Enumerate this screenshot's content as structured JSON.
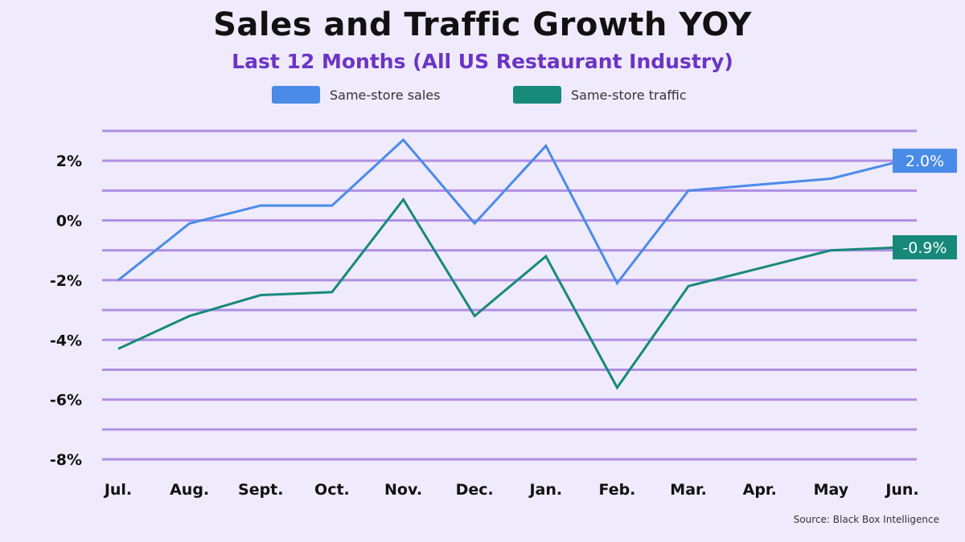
{
  "header": {
    "title": "Sales and Traffic Growth YOY",
    "subtitle": "Last 12 Months (All US Restaurant Industry)"
  },
  "source": "Source: Black Box Intelligence",
  "colors": {
    "sales": "#4a8be8",
    "traffic": "#16897a",
    "subtitle": "#6b34c4",
    "grid": "#b08fe3"
  },
  "chart_data": {
    "type": "line",
    "title": "Sales and Traffic Growth YOY",
    "subtitle": "Last 12 Months (All US Restaurant Industry)",
    "xlabel": "",
    "ylabel": "",
    "categories": [
      "Jul.",
      "Aug.",
      "Sept.",
      "Oct.",
      "Nov.",
      "Dec.",
      "Jan.",
      "Feb.",
      "Mar.",
      "Apr.",
      "May",
      "Jun."
    ],
    "ylim": [
      -8,
      3
    ],
    "yticks": [
      2,
      0,
      -2,
      -4,
      -6,
      -8
    ],
    "ytick_labels": [
      "2%",
      "0%",
      "-2%",
      "-4%",
      "-6%",
      "-8%"
    ],
    "gridlines": [
      3,
      2,
      1,
      0,
      -1,
      -2,
      -3,
      -4,
      -5,
      -6,
      -7,
      -8
    ],
    "grid": true,
    "legend_position": "top-center",
    "series": [
      {
        "name": "Same-store sales",
        "color": "#4a8be8",
        "values": [
          -2.0,
          -0.1,
          0.5,
          0.5,
          2.7,
          -0.1,
          2.5,
          -2.1,
          1.0,
          1.2,
          1.4,
          2.0
        ],
        "end_label": "2.0%"
      },
      {
        "name": "Same-store traffic",
        "color": "#16897a",
        "values": [
          -4.3,
          -3.2,
          -2.5,
          -2.4,
          0.7,
          -3.2,
          -1.2,
          -5.6,
          -2.2,
          -1.6,
          -1.0,
          -0.9
        ],
        "end_label": "-0.9%"
      }
    ]
  }
}
